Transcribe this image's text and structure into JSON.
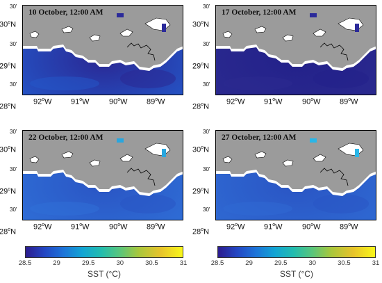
{
  "panels": [
    {
      "title": "10 October, 12:00 AM",
      "sea_color": "#2457c9",
      "sea_dark": "#2a2894",
      "marker_color": "#2b2a9a"
    },
    {
      "title": "17 October, 12:00 AM",
      "sea_color": "#2b2a8f",
      "sea_dark": "#23218a",
      "marker_color": "#2b2a9a"
    },
    {
      "title": "22 October, 12:00 AM",
      "sea_color": "#2f6fd7",
      "sea_dark": "#2a55c4",
      "marker_color": "#29a6de"
    },
    {
      "title": "27 October, 12:00 AM",
      "sea_color": "#2f6ad3",
      "sea_dark": "#2a55c4",
      "marker_color": "#29b6e8"
    }
  ],
  "lat_labels": {
    "top": "30",
    "mid": "29",
    "bottom": "28",
    "suffix": "N",
    "half": "30'"
  },
  "lon_labels": [
    "92",
    "91",
    "90",
    "89"
  ],
  "lon_suffix": "W",
  "land_color": "#9b9b9b",
  "colorbar": {
    "label": "SST (°C)",
    "ticks": [
      "28.5",
      "29",
      "29.5",
      "30",
      "30.5",
      "31"
    ]
  }
}
